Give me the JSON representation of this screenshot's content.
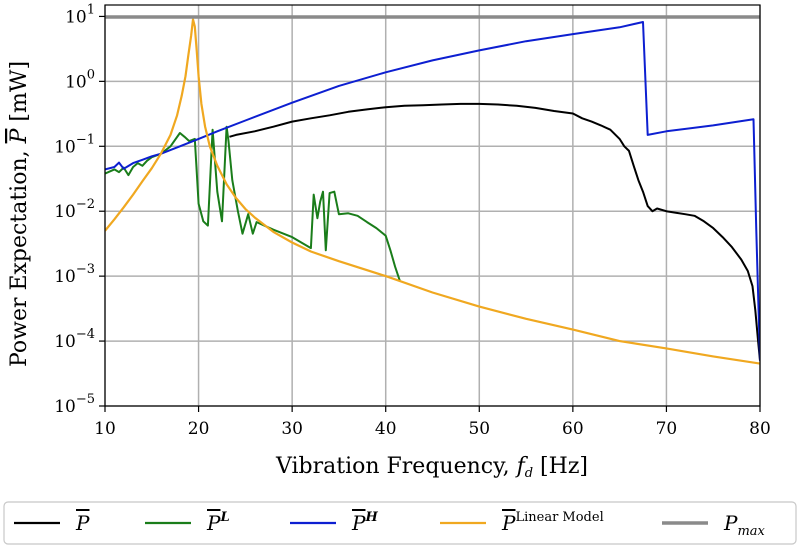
{
  "chart_data": {
    "type": "line",
    "xlabel": {
      "prefix": "Vibration Frequency, ",
      "var": "f",
      "sub": "d",
      "suffix": " [Hz]"
    },
    "ylabel": {
      "prefix": "Power Expectation, ",
      "var": "P",
      "suffix": " [mW]"
    },
    "xlim": [
      10,
      80
    ],
    "ylim": [
      1e-05,
      15
    ],
    "yscale": "log",
    "grid": true,
    "legend_position": "bottom",
    "x_ticks": [
      "10",
      "20",
      "30",
      "40",
      "50",
      "60",
      "70",
      "80"
    ],
    "y_ticks": [
      {
        "value": 1e-05,
        "base": "10",
        "exp": "−5"
      },
      {
        "value": 0.0001,
        "base": "10",
        "exp": "−4"
      },
      {
        "value": 0.001,
        "base": "10",
        "exp": "−3"
      },
      {
        "value": 0.01,
        "base": "10",
        "exp": "−2"
      },
      {
        "value": 0.1,
        "base": "10",
        "exp": "−1"
      },
      {
        "value": 1,
        "base": "10",
        "exp": "0"
      },
      {
        "value": 10,
        "base": "10",
        "exp": "1"
      }
    ],
    "series": [
      {
        "key": "P",
        "color": "#000000",
        "legend": {
          "main": "P",
          "sup": ""
        },
        "points": [
          [
            23.3,
            0.14
          ],
          [
            24,
            0.15
          ],
          [
            26,
            0.17
          ],
          [
            28,
            0.2
          ],
          [
            30,
            0.24
          ],
          [
            32,
            0.27
          ],
          [
            34,
            0.3
          ],
          [
            36,
            0.34
          ],
          [
            38,
            0.37
          ],
          [
            40,
            0.4
          ],
          [
            42,
            0.42
          ],
          [
            44,
            0.43
          ],
          [
            46,
            0.44
          ],
          [
            48,
            0.45
          ],
          [
            50,
            0.45
          ],
          [
            52,
            0.44
          ],
          [
            54,
            0.42
          ],
          [
            56,
            0.39
          ],
          [
            58,
            0.35
          ],
          [
            60,
            0.32
          ],
          [
            61,
            0.27
          ],
          [
            62,
            0.24
          ],
          [
            63,
            0.21
          ],
          [
            64,
            0.18
          ],
          [
            65,
            0.13
          ],
          [
            65.5,
            0.1
          ],
          [
            66,
            0.085
          ],
          [
            66.5,
            0.05
          ],
          [
            67,
            0.03
          ],
          [
            67.5,
            0.02
          ],
          [
            68,
            0.012
          ],
          [
            68.5,
            0.01
          ],
          [
            69,
            0.011
          ],
          [
            70,
            0.01
          ],
          [
            71,
            0.0095
          ],
          [
            72,
            0.009
          ],
          [
            73,
            0.0085
          ],
          [
            74,
            0.007
          ],
          [
            75,
            0.0055
          ],
          [
            76,
            0.004
          ],
          [
            77,
            0.0028
          ],
          [
            78,
            0.0018
          ],
          [
            78.7,
            0.0012
          ],
          [
            79.2,
            0.0007
          ],
          [
            79.5,
            0.0003
          ],
          [
            79.8,
            0.0001
          ],
          [
            80,
            5e-05
          ]
        ]
      },
      {
        "key": "P_L",
        "color": "#1a7d1a",
        "legend": {
          "main": "P",
          "sup": "L"
        },
        "points": [
          [
            10,
            0.038
          ],
          [
            11,
            0.044
          ],
          [
            11.5,
            0.04
          ],
          [
            12,
            0.047
          ],
          [
            12.5,
            0.036
          ],
          [
            13,
            0.048
          ],
          [
            13.5,
            0.055
          ],
          [
            14,
            0.05
          ],
          [
            14.5,
            0.06
          ],
          [
            15,
            0.068
          ],
          [
            16,
            0.077
          ],
          [
            17,
            0.1
          ],
          [
            18,
            0.16
          ],
          [
            18.5,
            0.14
          ],
          [
            19,
            0.12
          ],
          [
            19.6,
            0.13
          ],
          [
            20,
            0.013
          ],
          [
            20.5,
            0.007
          ],
          [
            21,
            0.006
          ],
          [
            21.5,
            0.18
          ],
          [
            22,
            0.02
          ],
          [
            22.5,
            0.007
          ],
          [
            23,
            0.2
          ],
          [
            23.2,
            0.12
          ],
          [
            23.6,
            0.03
          ],
          [
            24.2,
            0.01
          ],
          [
            24.7,
            0.0045
          ],
          [
            25.3,
            0.009
          ],
          [
            25.8,
            0.0045
          ],
          [
            26.2,
            0.0068
          ],
          [
            28,
            0.0052
          ],
          [
            30,
            0.004
          ],
          [
            32,
            0.0027
          ],
          [
            32.3,
            0.018
          ],
          [
            32.7,
            0.0078
          ],
          [
            33,
            0.014
          ],
          [
            33.3,
            0.02
          ],
          [
            33.6,
            0.0025
          ],
          [
            34,
            0.019
          ],
          [
            34.5,
            0.02
          ],
          [
            35,
            0.009
          ],
          [
            36,
            0.0093
          ],
          [
            37,
            0.0085
          ],
          [
            38,
            0.0068
          ],
          [
            39,
            0.0055
          ],
          [
            40,
            0.0042
          ],
          [
            40.5,
            0.0025
          ],
          [
            41,
            0.0014
          ],
          [
            41.5,
            0.00085
          ]
        ]
      },
      {
        "key": "P_H",
        "color": "#0d1fd1",
        "legend": {
          "main": "P",
          "sup": "H"
        },
        "points": [
          [
            10,
            0.044
          ],
          [
            11,
            0.048
          ],
          [
            11.5,
            0.056
          ],
          [
            12,
            0.045
          ],
          [
            13,
            0.055
          ],
          [
            14,
            0.062
          ],
          [
            15,
            0.07
          ],
          [
            16,
            0.077
          ],
          [
            18,
            0.1
          ],
          [
            20,
            0.13
          ],
          [
            22,
            0.17
          ],
          [
            25,
            0.25
          ],
          [
            30,
            0.47
          ],
          [
            35,
            0.85
          ],
          [
            40,
            1.38
          ],
          [
            45,
            2.1
          ],
          [
            50,
            3.0
          ],
          [
            55,
            4.15
          ],
          [
            60,
            5.35
          ],
          [
            65,
            6.8
          ],
          [
            67.5,
            8.2
          ],
          [
            68,
            0.15
          ],
          [
            70,
            0.17
          ],
          [
            75,
            0.21
          ],
          [
            79.3,
            0.26
          ],
          [
            79.6,
            0.005
          ],
          [
            80,
            5e-05
          ]
        ]
      },
      {
        "key": "P_lin",
        "color": "#f0a820",
        "legend": {
          "main": "P",
          "sup": "Linear Model"
        },
        "points": [
          [
            10,
            0.005
          ],
          [
            11,
            0.0075
          ],
          [
            12,
            0.0115
          ],
          [
            13,
            0.018
          ],
          [
            14,
            0.029
          ],
          [
            15,
            0.046
          ],
          [
            16,
            0.078
          ],
          [
            17,
            0.15
          ],
          [
            17.7,
            0.3
          ],
          [
            18.2,
            0.6
          ],
          [
            18.6,
            1.2
          ],
          [
            18.9,
            2.5
          ],
          [
            19.2,
            5.0
          ],
          [
            19.4,
            9.0
          ],
          [
            19.6,
            7.0
          ],
          [
            19.8,
            3.0
          ],
          [
            20,
            1.2
          ],
          [
            20.3,
            0.45
          ],
          [
            20.7,
            0.2
          ],
          [
            21.2,
            0.1
          ],
          [
            22,
            0.05
          ],
          [
            23,
            0.026
          ],
          [
            24,
            0.016
          ],
          [
            25,
            0.0108
          ],
          [
            26,
            0.008
          ],
          [
            28,
            0.0048
          ],
          [
            30,
            0.0033
          ],
          [
            32,
            0.0024
          ],
          [
            35,
            0.0017
          ],
          [
            40,
            0.001
          ],
          [
            45,
            0.00056
          ],
          [
            50,
            0.00034
          ],
          [
            55,
            0.00022
          ],
          [
            60,
            0.00015
          ],
          [
            65,
            0.0001
          ],
          [
            70,
            7.7e-05
          ],
          [
            75,
            5.8e-05
          ],
          [
            80,
            4.5e-05
          ]
        ]
      },
      {
        "key": "P_max",
        "color": "#8a8a8a",
        "legend": {
          "main": "P",
          "sub": "max"
        },
        "points": [
          [
            10,
            9.8
          ],
          [
            80,
            9.8
          ]
        ]
      }
    ]
  }
}
